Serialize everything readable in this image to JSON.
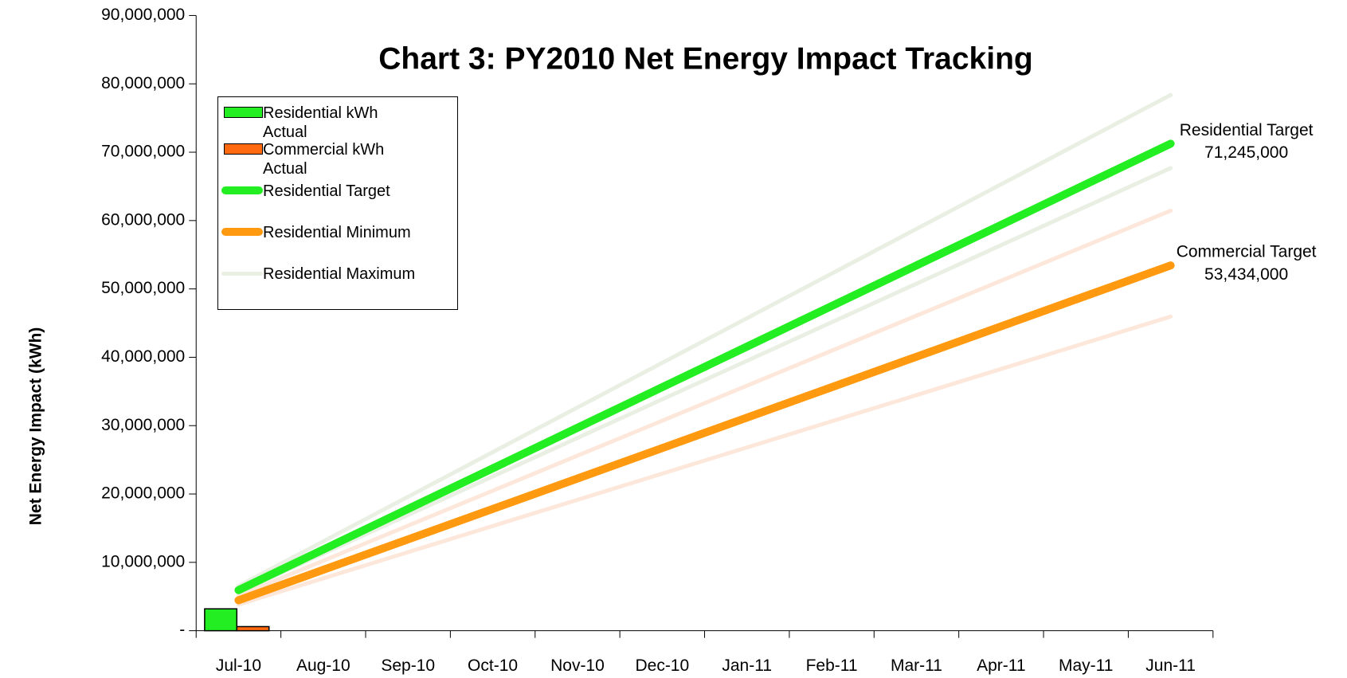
{
  "chart_data": {
    "type": "bar_line",
    "title": "Chart 3:  PY2010 Net Energy Impact Tracking",
    "y_label": "Net Energy Impact (kWh)",
    "categories": [
      "Jul-10",
      "Aug-10",
      "Sep-10",
      "Oct-10",
      "Nov-10",
      "Dec-10",
      "Jan-11",
      "Feb-11",
      "Mar-11",
      "Apr-11",
      "May-11",
      "Jun-11"
    ],
    "ylim": [
      0,
      90000000
    ],
    "yticks": [
      {
        "value": 0,
        "label": "-"
      },
      {
        "value": 10000000,
        "label": "10,000,000"
      },
      {
        "value": 20000000,
        "label": "20,000,000"
      },
      {
        "value": 30000000,
        "label": "30,000,000"
      },
      {
        "value": 40000000,
        "label": "40,000,000"
      },
      {
        "value": 50000000,
        "label": "50,000,000"
      },
      {
        "value": 60000000,
        "label": "60,000,000"
      },
      {
        "value": 70000000,
        "label": "70,000,000"
      },
      {
        "value": 80000000,
        "label": "80,000,000"
      },
      {
        "value": 90000000,
        "label": "90,000,000"
      }
    ],
    "series": [
      {
        "name": "Residential kWh Actual",
        "type": "bar",
        "color": "#22ee22",
        "values": [
          3200000,
          null,
          null,
          null,
          null,
          null,
          null,
          null,
          null,
          null,
          null,
          null
        ]
      },
      {
        "name": "Commercial kWh Actual",
        "type": "bar",
        "color": "#ff6a10",
        "values": [
          600000,
          null,
          null,
          null,
          null,
          null,
          null,
          null,
          null,
          null,
          null,
          null
        ]
      },
      {
        "type": "line",
        "color": "#e9efe2",
        "width": 5,
        "values": [
          5640229,
          11280458,
          16920688,
          22560917,
          28201146,
          33841375,
          39481604,
          45121833,
          50762063,
          56402292,
          62042521,
          67682750
        ]
      },
      {
        "type": "line",
        "color": "#fde7da",
        "width": 5,
        "values": [
          5120758,
          10241517,
          15362275,
          20483033,
          25603792,
          30724550,
          35845308,
          40966067,
          46086825,
          51207583,
          56328342,
          61449100
        ]
      },
      {
        "type": "line",
        "color": "#fde7da",
        "width": 5,
        "values": [
          3829437,
          7658873,
          11488310,
          15317747,
          19147183,
          22976620,
          26806057,
          30635493,
          34464930,
          38294367,
          42123803,
          45953240
        ]
      },
      {
        "name": "Residential Maximum",
        "type": "line",
        "color": "#e9efe2",
        "width": 5,
        "values": [
          6530792,
          13061583,
          19592375,
          26123167,
          32653958,
          39184750,
          45715542,
          52246333,
          58777125,
          65307917,
          71838708,
          78369500
        ]
      },
      {
        "name": "Residential Target",
        "type": "line",
        "color": "#22ee22",
        "width": 10,
        "annotation": "Residential Target",
        "values": [
          5937083,
          11874167,
          17811250,
          23748333,
          29685417,
          35622500,
          41559583,
          47496667,
          53433750,
          59370833,
          65307917,
          71245000
        ],
        "value_labels": [
          null,
          null,
          null,
          null,
          null,
          null,
          null,
          null,
          null,
          null,
          null,
          "71,245,000"
        ]
      },
      {
        "name": "Residential Minimum",
        "type": "line",
        "color": "#ff9a10",
        "width": 10,
        "annotation": "Commercial Target",
        "values": [
          4452833,
          8905667,
          13358500,
          17811333,
          22264167,
          26717000,
          31169833,
          35622667,
          40075500,
          44528333,
          48981167,
          53434000
        ],
        "value_labels": [
          null,
          null,
          null,
          null,
          null,
          null,
          null,
          null,
          null,
          null,
          null,
          "53,434,000"
        ]
      }
    ],
    "legend_order": [
      0,
      1,
      6,
      7,
      5
    ]
  }
}
